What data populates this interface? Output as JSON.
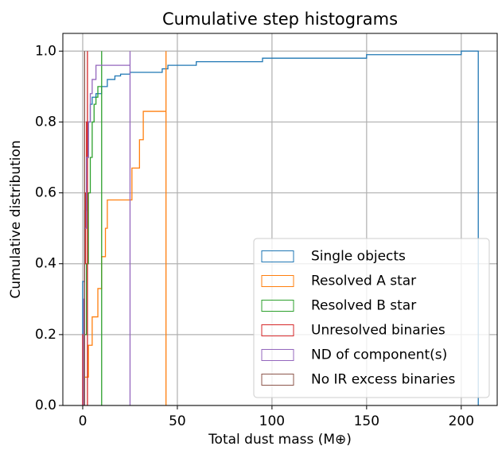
{
  "chart_data": {
    "type": "step",
    "title": "Cumulative step histograms",
    "xlabel": "Total dust mass (M⊕)",
    "ylabel": "Cumulative distribution",
    "xlim": [
      -10.5,
      219
    ],
    "ylim": [
      0,
      1.05
    ],
    "xticks": [
      0,
      50,
      100,
      150,
      200
    ],
    "yticks": [
      {
        "value": 0,
        "label": "0.0"
      },
      {
        "value": 0.2,
        "label": "0.2"
      },
      {
        "value": 0.4,
        "label": "0.4"
      },
      {
        "value": 0.6,
        "label": "0.6"
      },
      {
        "value": 0.8,
        "label": "0.8"
      },
      {
        "value": 1,
        "label": "1.0"
      }
    ],
    "grid": true,
    "legend": "lower right",
    "series": [
      {
        "name": "Single objects",
        "color": "#1f77b4",
        "x": [
          0,
          1,
          2,
          3,
          4,
          5,
          7,
          10,
          13,
          17,
          20,
          25,
          35,
          42,
          45,
          60,
          95,
          150,
          200,
          209
        ],
        "values": [
          0.35,
          0.55,
          0.7,
          0.8,
          0.85,
          0.87,
          0.88,
          0.9,
          0.92,
          0.93,
          0.935,
          0.94,
          0.94,
          0.95,
          0.96,
          0.97,
          0.98,
          0.99,
          1.0,
          1.0
        ]
      },
      {
        "name": "Resolved A star",
        "color": "#ff7f0e",
        "x": [
          1,
          3,
          5,
          8,
          10,
          12,
          13,
          26,
          30,
          32,
          44
        ],
        "values": [
          0.08,
          0.17,
          0.25,
          0.33,
          0.42,
          0.5,
          0.58,
          0.67,
          0.75,
          0.83,
          1.0
        ]
      },
      {
        "name": "Resolved B star",
        "color": "#2ca02c",
        "x": [
          1,
          2,
          3,
          4,
          5,
          6,
          7,
          8,
          10
        ],
        "values": [
          0.2,
          0.4,
          0.6,
          0.7,
          0.8,
          0.85,
          0.87,
          0.9,
          1.0
        ]
      },
      {
        "name": "Unresolved binaries",
        "color": "#d62728",
        "x": [
          0,
          1,
          1.5,
          2,
          2.5
        ],
        "values": [
          0.2,
          0.4,
          0.6,
          0.8,
          1.0
        ]
      },
      {
        "name": "ND of component(s)",
        "color": "#9467bd",
        "x": [
          0.5,
          1,
          2,
          3,
          4,
          5,
          7,
          25
        ],
        "values": [
          0.3,
          0.5,
          0.7,
          0.8,
          0.88,
          0.92,
          0.96,
          1.0
        ]
      },
      {
        "name": "No IR excess binaries",
        "color": "#8c564b",
        "x": [
          1
        ],
        "values": [
          1.0
        ]
      }
    ]
  }
}
